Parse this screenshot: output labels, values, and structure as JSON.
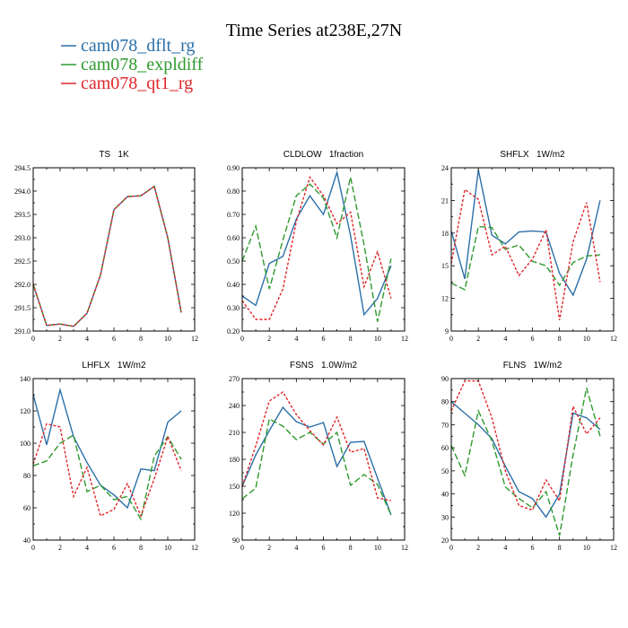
{
  "title": "Time Series at238E,27N",
  "legend": [
    {
      "label": "cam078_dflt_rg",
      "color": "#2b6fa8"
    },
    {
      "label": "cam078_expldiff",
      "color": "#2e9a2e"
    },
    {
      "label": "cam078_qt1_rg",
      "color": "#e0262a"
    }
  ],
  "chart_data": [
    {
      "type": "line",
      "title": "TS   1K",
      "x": [
        0,
        1,
        2,
        3,
        4,
        5,
        6,
        7,
        8,
        9,
        10,
        11
      ],
      "xlim": [
        0,
        12
      ],
      "xticks": [
        0,
        2,
        4,
        6,
        8,
        10,
        12
      ],
      "ylim": [
        291.0,
        294.5
      ],
      "yticks": [
        291.0,
        291.5,
        292.0,
        292.5,
        293.0,
        293.5,
        294.0,
        294.5
      ],
      "ytick_labels": [
        "291.0",
        "291.5",
        "292.0",
        "292.5",
        "293.0",
        "293.5",
        "294.0",
        "294.5"
      ],
      "series": [
        {
          "name": "cam078_dflt_rg",
          "values": [
            292.0,
            291.12,
            291.15,
            291.1,
            291.38,
            292.2,
            293.6,
            293.88,
            293.9,
            294.1,
            293.0,
            291.4
          ]
        },
        {
          "name": "cam078_expldiff",
          "values": [
            292.0,
            291.12,
            291.15,
            291.1,
            291.38,
            292.2,
            293.6,
            293.88,
            293.9,
            294.1,
            293.0,
            291.4
          ]
        },
        {
          "name": "cam078_qt1_rg",
          "values": [
            292.0,
            291.12,
            291.15,
            291.1,
            291.38,
            292.2,
            293.6,
            293.88,
            293.9,
            294.1,
            293.0,
            291.4
          ]
        }
      ]
    },
    {
      "type": "line",
      "title": "CLDLOW   1fraction",
      "x": [
        0,
        1,
        2,
        3,
        4,
        5,
        6,
        7,
        8,
        9,
        10,
        11
      ],
      "xlim": [
        0,
        12
      ],
      "xticks": [
        0,
        2,
        4,
        6,
        8,
        10,
        12
      ],
      "ylim": [
        0.2,
        0.9
      ],
      "yticks": [
        0.2,
        0.3,
        0.4,
        0.5,
        0.6,
        0.7,
        0.8,
        0.9
      ],
      "ytick_labels": [
        "0.20",
        "0.30",
        "0.40",
        "0.50",
        "0.60",
        "0.70",
        "0.80",
        "0.90"
      ],
      "series": [
        {
          "name": "cam078_dflt_rg",
          "values": [
            0.35,
            0.31,
            0.49,
            0.52,
            0.68,
            0.78,
            0.7,
            0.88,
            0.61,
            0.27,
            0.34,
            0.48
          ]
        },
        {
          "name": "cam078_expldiff",
          "values": [
            0.5,
            0.65,
            0.38,
            0.59,
            0.78,
            0.83,
            0.77,
            0.6,
            0.86,
            0.57,
            0.24,
            0.51
          ]
        },
        {
          "name": "cam078_qt1_rg",
          "values": [
            0.33,
            0.25,
            0.25,
            0.38,
            0.67,
            0.86,
            0.78,
            0.66,
            0.71,
            0.39,
            0.54,
            0.34
          ]
        }
      ]
    },
    {
      "type": "line",
      "title": "SHFLX   1W/m2",
      "x": [
        0,
        1,
        2,
        3,
        4,
        5,
        6,
        7,
        8,
        9,
        10,
        11
      ],
      "xlim": [
        0,
        12
      ],
      "xticks": [
        0,
        2,
        4,
        6,
        8,
        10,
        12
      ],
      "ylim": [
        9,
        24
      ],
      "yticks": [
        9,
        12,
        15,
        18,
        21,
        24
      ],
      "ytick_labels": [
        "9",
        "12",
        "15",
        "18",
        "21",
        "24"
      ],
      "series": [
        {
          "name": "cam078_dflt_rg",
          "values": [
            18.2,
            13.8,
            23.8,
            17.8,
            17.0,
            18.1,
            18.2,
            18.1,
            14.3,
            12.3,
            15.6,
            21.0
          ]
        },
        {
          "name": "cam078_expldiff",
          "values": [
            13.4,
            12.8,
            18.6,
            18.5,
            16.5,
            16.9,
            15.4,
            15.0,
            13.2,
            15.3,
            15.9,
            16.0
          ]
        },
        {
          "name": "cam078_qt1_rg",
          "values": [
            15.2,
            22.0,
            21.1,
            16.0,
            16.8,
            14.1,
            15.6,
            18.3,
            10.0,
            17.2,
            20.8,
            13.5
          ]
        }
      ]
    },
    {
      "type": "line",
      "title": "LHFLX   1W/m2",
      "x": [
        0,
        1,
        2,
        3,
        4,
        5,
        6,
        7,
        8,
        9,
        10,
        11
      ],
      "xlim": [
        0,
        12
      ],
      "xticks": [
        0,
        2,
        4,
        6,
        8,
        10,
        12
      ],
      "ylim": [
        40,
        140
      ],
      "yticks": [
        40,
        60,
        80,
        100,
        120,
        140
      ],
      "ytick_labels": [
        "40",
        "60",
        "80",
        "100",
        "120",
        "140"
      ],
      "series": [
        {
          "name": "cam078_dflt_rg",
          "values": [
            130,
            99,
            133,
            104,
            88,
            74,
            68,
            60,
            84,
            83,
            113,
            120
          ]
        },
        {
          "name": "cam078_expldiff",
          "values": [
            86,
            89,
            100,
            105,
            70,
            74,
            65,
            67,
            53,
            92,
            104,
            90
          ]
        },
        {
          "name": "cam078_qt1_rg",
          "values": [
            87,
            112,
            110,
            67,
            85,
            55,
            59,
            75,
            55,
            78,
            104,
            83
          ]
        }
      ]
    },
    {
      "type": "line",
      "title": "FSNS   1.0W/m2",
      "x": [
        0,
        1,
        2,
        3,
        4,
        5,
        6,
        7,
        8,
        9,
        10,
        11
      ],
      "xlim": [
        0,
        12
      ],
      "xticks": [
        0,
        2,
        4,
        6,
        8,
        10,
        12
      ],
      "ylim": [
        90,
        270
      ],
      "yticks": [
        90,
        120,
        150,
        180,
        210,
        240,
        270
      ],
      "ytick_labels": [
        "90",
        "120",
        "150",
        "180",
        "210",
        "240",
        "270"
      ],
      "series": [
        {
          "name": "cam078_dflt_rg",
          "values": [
            150,
            185,
            212,
            238,
            222,
            216,
            221,
            172,
            199,
            200,
            159,
            118
          ]
        },
        {
          "name": "cam078_expldiff",
          "values": [
            136,
            148,
            225,
            217,
            202,
            210,
            197,
            210,
            151,
            163,
            152,
            118
          ]
        },
        {
          "name": "cam078_qt1_rg",
          "values": [
            150,
            195,
            245,
            255,
            230,
            212,
            196,
            227,
            188,
            192,
            137,
            134
          ]
        }
      ]
    },
    {
      "type": "line",
      "title": "FLNS   1W/m2",
      "x": [
        0,
        1,
        2,
        3,
        4,
        5,
        6,
        7,
        8,
        9,
        10,
        11
      ],
      "xlim": [
        0,
        12
      ],
      "xticks": [
        0,
        2,
        4,
        6,
        8,
        10,
        12
      ],
      "ylim": [
        20,
        90
      ],
      "yticks": [
        20,
        30,
        40,
        50,
        60,
        70,
        80,
        90
      ],
      "ytick_labels": [
        "20",
        "30",
        "40",
        "50",
        "60",
        "70",
        "80",
        "90"
      ],
      "series": [
        {
          "name": "cam078_dflt_rg",
          "values": [
            80,
            75,
            70,
            64,
            52,
            41,
            38,
            30,
            40,
            75,
            73,
            68
          ]
        },
        {
          "name": "cam078_expldiff",
          "values": [
            61,
            48,
            76,
            63,
            43,
            38,
            34,
            41,
            22,
            57,
            86,
            65
          ]
        },
        {
          "name": "cam078_qt1_rg",
          "values": [
            76,
            89,
            89,
            73,
            50,
            35,
            33,
            46,
            37,
            78,
            66,
            73
          ]
        }
      ]
    }
  ]
}
